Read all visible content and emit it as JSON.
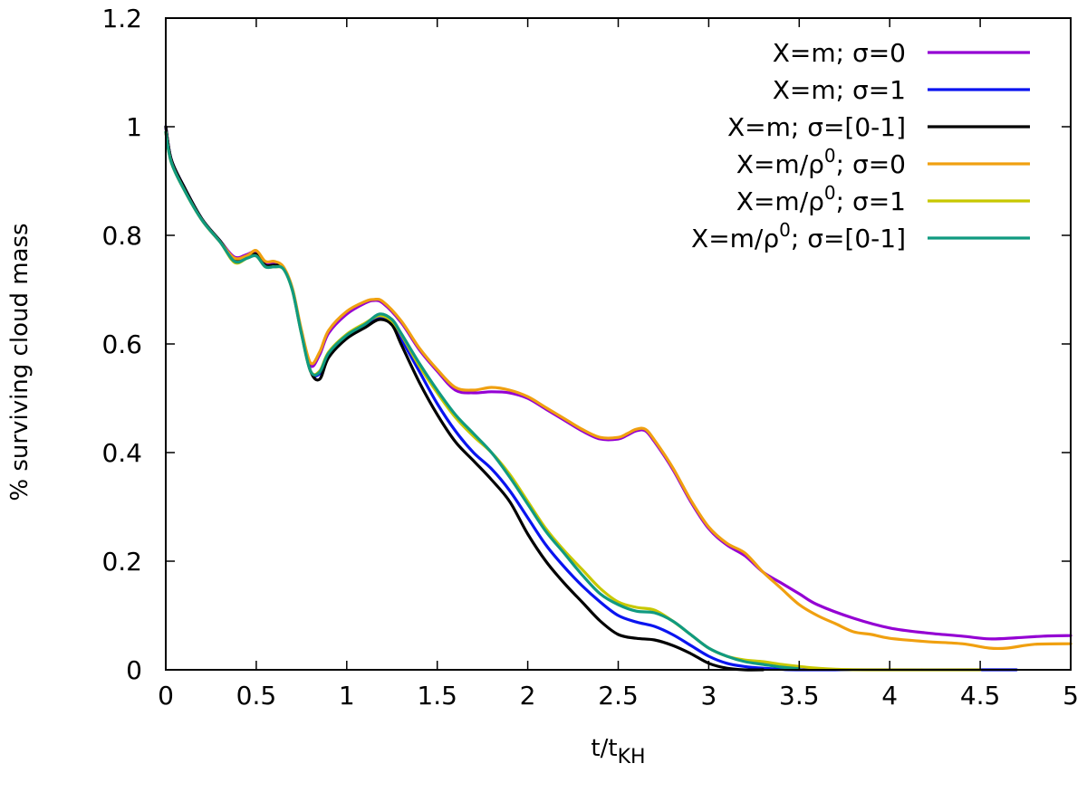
{
  "chart_data": {
    "type": "line",
    "title": "",
    "xlabel": "t/t",
    "xlabel_sub": "KH",
    "ylabel": "% surviving cloud mass",
    "xlim": [
      0,
      5
    ],
    "ylim": [
      0,
      1.2
    ],
    "xticks": [
      0,
      0.5,
      1,
      1.5,
      2,
      2.5,
      3,
      3.5,
      4,
      4.5,
      5
    ],
    "xtick_labels": [
      "0",
      "0.5",
      "1",
      "1.5",
      "2",
      "2.5",
      "3",
      "3.5",
      "4",
      "4.5",
      "5"
    ],
    "yticks": [
      0,
      0.2,
      0.4,
      0.6,
      0.8,
      1,
      1.2
    ],
    "ytick_labels": [
      "0",
      "0.2",
      "0.4",
      "0.6",
      "0.8",
      "1",
      "1.2"
    ],
    "grid": false,
    "legend": "top-right",
    "series": [
      {
        "name": "X=m; σ=0",
        "label_parts": [
          "X=m; σ=0"
        ],
        "color": "#9400d3",
        "x": [
          0,
          0.03,
          0.1,
          0.2,
          0.3,
          0.38,
          0.45,
          0.5,
          0.55,
          0.6,
          0.65,
          0.7,
          0.75,
          0.8,
          0.85,
          0.9,
          1.0,
          1.1,
          1.15,
          1.2,
          1.3,
          1.4,
          1.5,
          1.6,
          1.7,
          1.8,
          1.9,
          2.0,
          2.1,
          2.2,
          2.3,
          2.4,
          2.5,
          2.55,
          2.6,
          2.65,
          2.7,
          2.8,
          2.9,
          3.0,
          3.1,
          3.2,
          3.3,
          3.4,
          3.5,
          3.6,
          3.8,
          4.0,
          4.2,
          4.4,
          4.55,
          4.7,
          4.85,
          5.0
        ],
        "values": [
          1.0,
          0.94,
          0.89,
          0.83,
          0.79,
          0.76,
          0.765,
          0.77,
          0.75,
          0.75,
          0.74,
          0.7,
          0.62,
          0.56,
          0.58,
          0.62,
          0.655,
          0.675,
          0.68,
          0.675,
          0.64,
          0.59,
          0.55,
          0.515,
          0.51,
          0.512,
          0.51,
          0.5,
          0.48,
          0.46,
          0.44,
          0.425,
          0.425,
          0.432,
          0.44,
          0.44,
          0.42,
          0.37,
          0.31,
          0.26,
          0.23,
          0.21,
          0.18,
          0.16,
          0.14,
          0.12,
          0.095,
          0.077,
          0.068,
          0.062,
          0.057,
          0.059,
          0.062,
          0.063
        ]
      },
      {
        "name": "X=m; σ=1",
        "label_parts": [
          "X=m; σ=1"
        ],
        "color": "#0a14f0",
        "x": [
          0,
          0.03,
          0.1,
          0.2,
          0.3,
          0.38,
          0.45,
          0.5,
          0.55,
          0.6,
          0.65,
          0.7,
          0.75,
          0.8,
          0.85,
          0.9,
          1.0,
          1.1,
          1.18,
          1.25,
          1.3,
          1.4,
          1.5,
          1.6,
          1.7,
          1.8,
          1.9,
          2.0,
          2.1,
          2.2,
          2.3,
          2.4,
          2.5,
          2.6,
          2.7,
          2.8,
          2.9,
          3.0,
          3.1,
          3.2,
          3.3,
          3.4,
          3.5,
          4.0,
          4.5,
          4.7
        ],
        "values": [
          1.0,
          0.94,
          0.89,
          0.83,
          0.79,
          0.755,
          0.76,
          0.765,
          0.745,
          0.745,
          0.74,
          0.7,
          0.62,
          0.55,
          0.545,
          0.58,
          0.615,
          0.635,
          0.65,
          0.64,
          0.61,
          0.55,
          0.49,
          0.44,
          0.4,
          0.37,
          0.33,
          0.28,
          0.23,
          0.19,
          0.155,
          0.125,
          0.1,
          0.088,
          0.08,
          0.065,
          0.045,
          0.025,
          0.012,
          0.006,
          0.003,
          0.001,
          0.0,
          0.0,
          0.0,
          0.0
        ]
      },
      {
        "name": "X=m; σ=[0-1]",
        "label_parts": [
          "X=m; σ=[0-1]"
        ],
        "color": "#000000",
        "x": [
          0,
          0.03,
          0.1,
          0.2,
          0.3,
          0.38,
          0.45,
          0.5,
          0.55,
          0.6,
          0.65,
          0.7,
          0.75,
          0.8,
          0.85,
          0.9,
          1.0,
          1.1,
          1.18,
          1.25,
          1.3,
          1.4,
          1.5,
          1.6,
          1.7,
          1.8,
          1.9,
          2.0,
          2.1,
          2.2,
          2.3,
          2.4,
          2.5,
          2.6,
          2.7,
          2.8,
          2.9,
          3.0,
          3.1,
          3.2,
          3.3
        ],
        "values": [
          1.0,
          0.94,
          0.89,
          0.83,
          0.79,
          0.755,
          0.76,
          0.765,
          0.745,
          0.745,
          0.74,
          0.7,
          0.62,
          0.55,
          0.535,
          0.575,
          0.61,
          0.63,
          0.645,
          0.635,
          0.6,
          0.53,
          0.47,
          0.42,
          0.385,
          0.35,
          0.31,
          0.25,
          0.2,
          0.16,
          0.125,
          0.09,
          0.065,
          0.058,
          0.055,
          0.045,
          0.03,
          0.012,
          0.003,
          0.0,
          0.0
        ]
      },
      {
        "name": "X=m/ρ0; σ=0",
        "label_parts": [
          "X=m/ρ",
          "0",
          "; σ=0"
        ],
        "color": "#f0a010",
        "x": [
          0,
          0.03,
          0.1,
          0.2,
          0.3,
          0.38,
          0.45,
          0.5,
          0.55,
          0.6,
          0.65,
          0.7,
          0.75,
          0.8,
          0.85,
          0.9,
          1.0,
          1.1,
          1.15,
          1.2,
          1.3,
          1.4,
          1.5,
          1.6,
          1.7,
          1.8,
          1.9,
          2.0,
          2.1,
          2.2,
          2.3,
          2.4,
          2.5,
          2.55,
          2.6,
          2.65,
          2.7,
          2.8,
          2.9,
          3.0,
          3.1,
          3.2,
          3.3,
          3.4,
          3.5,
          3.6,
          3.7,
          3.8,
          3.9,
          4.0,
          4.2,
          4.4,
          4.55,
          4.65,
          4.8,
          5.0
        ],
        "values": [
          0.99,
          0.935,
          0.885,
          0.828,
          0.788,
          0.758,
          0.763,
          0.772,
          0.752,
          0.752,
          0.742,
          0.702,
          0.625,
          0.565,
          0.585,
          0.625,
          0.66,
          0.678,
          0.682,
          0.678,
          0.643,
          0.593,
          0.553,
          0.52,
          0.515,
          0.52,
          0.515,
          0.503,
          0.483,
          0.463,
          0.443,
          0.428,
          0.428,
          0.435,
          0.443,
          0.443,
          0.423,
          0.373,
          0.313,
          0.263,
          0.233,
          0.215,
          0.18,
          0.15,
          0.12,
          0.1,
          0.085,
          0.07,
          0.065,
          0.058,
          0.052,
          0.048,
          0.04,
          0.04,
          0.047,
          0.048
        ]
      },
      {
        "name": "X=m/ρ0; σ=1",
        "label_parts": [
          "X=m/ρ",
          "0",
          "; σ=1"
        ],
        "color": "#c8c800",
        "x": [
          0,
          0.03,
          0.1,
          0.2,
          0.3,
          0.38,
          0.45,
          0.5,
          0.55,
          0.6,
          0.65,
          0.7,
          0.75,
          0.8,
          0.85,
          0.9,
          1.0,
          1.1,
          1.18,
          1.25,
          1.3,
          1.4,
          1.5,
          1.6,
          1.7,
          1.8,
          1.9,
          2.0,
          2.1,
          2.2,
          2.3,
          2.4,
          2.5,
          2.6,
          2.7,
          2.8,
          2.9,
          3.0,
          3.1,
          3.2,
          3.3,
          3.4,
          3.5,
          3.6,
          3.7,
          3.9,
          4.5
        ],
        "values": [
          0.99,
          0.935,
          0.885,
          0.828,
          0.788,
          0.75,
          0.758,
          0.762,
          0.742,
          0.742,
          0.738,
          0.698,
          0.618,
          0.55,
          0.55,
          0.585,
          0.618,
          0.638,
          0.652,
          0.642,
          0.618,
          0.56,
          0.51,
          0.465,
          0.43,
          0.4,
          0.36,
          0.31,
          0.26,
          0.22,
          0.185,
          0.15,
          0.125,
          0.115,
          0.11,
          0.09,
          0.065,
          0.04,
          0.025,
          0.018,
          0.015,
          0.01,
          0.006,
          0.003,
          0.001,
          0.0,
          0.0
        ]
      },
      {
        "name": "X=m/ρ0; σ=[0-1]",
        "label_parts": [
          "X=m/ρ",
          "0",
          "; σ=[0-1]"
        ],
        "color": "#109a80",
        "x": [
          0,
          0.03,
          0.1,
          0.2,
          0.3,
          0.38,
          0.45,
          0.5,
          0.55,
          0.6,
          0.65,
          0.7,
          0.75,
          0.8,
          0.85,
          0.9,
          1.0,
          1.1,
          1.18,
          1.25,
          1.3,
          1.4,
          1.5,
          1.6,
          1.7,
          1.8,
          1.9,
          2.0,
          2.1,
          2.2,
          2.3,
          2.4,
          2.5,
          2.6,
          2.7,
          2.8,
          2.9,
          3.0,
          3.1,
          3.2,
          3.3,
          3.4,
          3.5
        ],
        "values": [
          0.99,
          0.935,
          0.885,
          0.828,
          0.788,
          0.752,
          0.758,
          0.762,
          0.742,
          0.742,
          0.738,
          0.698,
          0.618,
          0.55,
          0.548,
          0.583,
          0.616,
          0.636,
          0.655,
          0.645,
          0.62,
          0.565,
          0.515,
          0.47,
          0.435,
          0.4,
          0.355,
          0.305,
          0.255,
          0.215,
          0.175,
          0.14,
          0.12,
          0.108,
          0.105,
          0.09,
          0.065,
          0.04,
          0.025,
          0.015,
          0.01,
          0.005,
          0.002
        ]
      }
    ]
  }
}
